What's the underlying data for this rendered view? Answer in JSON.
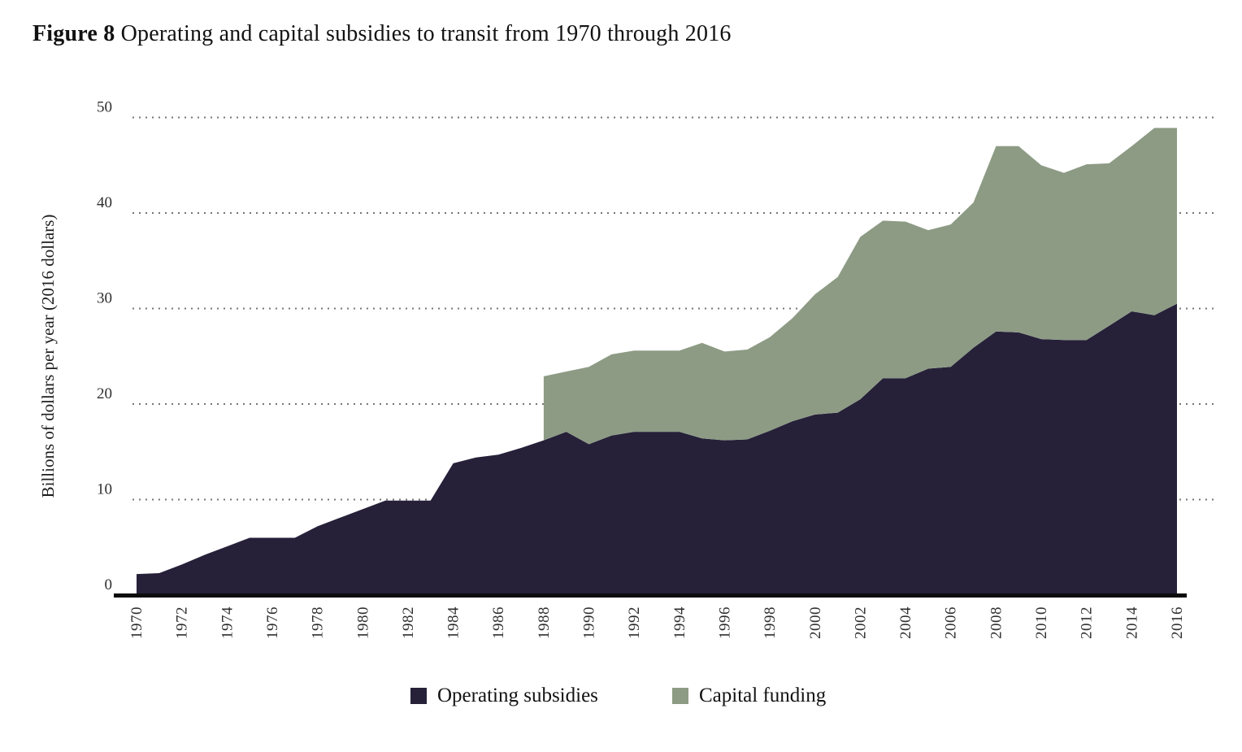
{
  "figure": {
    "label": "Figure 8",
    "title_rest": " Operating and capital subsidies to transit from 1970 through 2016"
  },
  "legend": {
    "items": [
      {
        "label": "Operating subsidies",
        "color": "#262039"
      },
      {
        "label": "Capital funding",
        "color": "#8d9b85"
      }
    ]
  },
  "chart_data": {
    "type": "area",
    "stacked": true,
    "title": "Figure 8 Operating and capital subsidies to transit from 1970 through 2016",
    "xlabel": "",
    "ylabel": "Billions of dollars per year (2016 dollars)",
    "ylim": [
      0,
      50
    ],
    "yticks": [
      0,
      10,
      20,
      30,
      40,
      50
    ],
    "xtick_interval": 2,
    "grid": "horizontal-dotted",
    "legend_position": "bottom",
    "x": [
      1970,
      1971,
      1972,
      1973,
      1974,
      1975,
      1976,
      1977,
      1978,
      1979,
      1980,
      1981,
      1982,
      1983,
      1984,
      1985,
      1986,
      1987,
      1988,
      1989,
      1990,
      1991,
      1992,
      1993,
      1994,
      1995,
      1996,
      1997,
      1998,
      1999,
      2000,
      2001,
      2002,
      2003,
      2004,
      2005,
      2006,
      2007,
      2008,
      2009,
      2010,
      2011,
      2012,
      2013,
      2014,
      2015,
      2016
    ],
    "series": [
      {
        "name": "Operating subsidies",
        "color": "#262039",
        "values": [
          2.2,
          2.3,
          3.2,
          4.2,
          5.1,
          6,
          6,
          6,
          7.2,
          8.1,
          9,
          9.9,
          9.9,
          9.9,
          13.8,
          14.4,
          14.7,
          15.4,
          16.2,
          17.1,
          15.8,
          16.7,
          17.1,
          17.1,
          17.1,
          16.4,
          16.2,
          16.3,
          17.2,
          18.2,
          18.9,
          19.1,
          20.5,
          22.7,
          22.7,
          23.7,
          23.9,
          25.9,
          27.6,
          27.5,
          26.8,
          26.7,
          26.7,
          28.2,
          29.7,
          29.3,
          30.5
        ]
      },
      {
        "name": "Capital funding",
        "color": "#8d9b85",
        "values": [
          null,
          null,
          null,
          null,
          null,
          null,
          null,
          null,
          null,
          null,
          null,
          null,
          null,
          null,
          null,
          null,
          null,
          null,
          6.7,
          6.3,
          8.1,
          8.5,
          8.5,
          8.5,
          8.5,
          10,
          9.3,
          9.4,
          9.8,
          10.8,
          12.6,
          14.2,
          17,
          16.5,
          16.4,
          14.5,
          14.9,
          15.2,
          19.4,
          19.5,
          18.2,
          17.5,
          18.4,
          17,
          17.3,
          19.6,
          18.4
        ]
      }
    ]
  }
}
